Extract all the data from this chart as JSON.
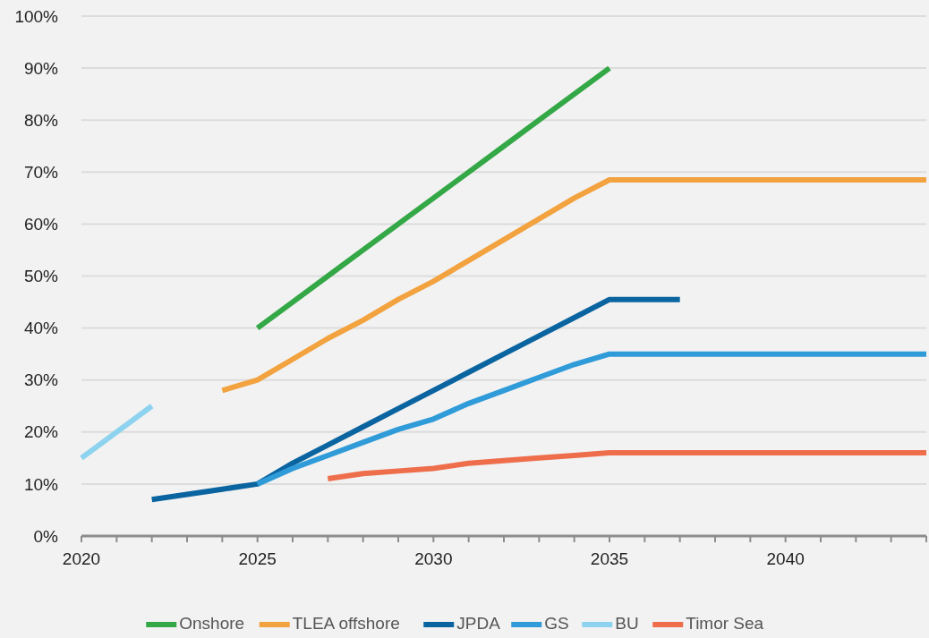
{
  "chart_data": {
    "type": "line",
    "xlim": [
      2020,
      2044
    ],
    "xticks": [
      2020,
      {
        "value": 2021,
        "label": null
      },
      {
        "value": 2022,
        "label": null
      },
      {
        "value": 2023,
        "label": null
      },
      {
        "value": 2024,
        "label": null
      },
      2025,
      {
        "value": 2026,
        "label": null
      },
      {
        "value": 2027,
        "label": null
      },
      {
        "value": 2028,
        "label": null
      },
      {
        "value": 2029,
        "label": null
      },
      2030,
      {
        "value": 2031,
        "label": null
      },
      {
        "value": 2032,
        "label": null
      },
      {
        "value": 2033,
        "label": null
      },
      {
        "value": 2034,
        "label": null
      },
      2035,
      {
        "value": 2036,
        "label": null
      },
      {
        "value": 2037,
        "label": null
      },
      {
        "value": 2038,
        "label": null
      },
      {
        "value": 2039,
        "label": null
      },
      2040,
      {
        "value": 2041,
        "label": null
      },
      {
        "value": 2042,
        "label": null
      },
      {
        "value": 2043,
        "label": null
      },
      {
        "value": 2044,
        "label": null
      }
    ],
    "ylim": [
      0,
      100
    ],
    "yticks": [
      {
        "value": 0,
        "label": "0%"
      },
      {
        "value": 10,
        "label": "10%"
      },
      {
        "value": 20,
        "label": "20%"
      },
      {
        "value": 30,
        "label": "30%"
      },
      {
        "value": 40,
        "label": "40%"
      },
      {
        "value": 50,
        "label": "50%"
      },
      {
        "value": 60,
        "label": "60%"
      },
      {
        "value": 70,
        "label": "70%"
      },
      {
        "value": 80,
        "label": "80%"
      },
      {
        "value": 90,
        "label": "90%"
      },
      {
        "value": 100,
        "label": "100%"
      }
    ],
    "grid": "y",
    "legend": "bottom",
    "marker": "none",
    "line_style": "solid",
    "series": [
      {
        "name": "Onshore",
        "color": "#34a846",
        "x": [
          2025,
          2026,
          2027,
          2028,
          2029,
          2030,
          2031,
          2032,
          2033,
          2034,
          2035
        ],
        "values": [
          40,
          45,
          50,
          55,
          60,
          65,
          70,
          75,
          80,
          85,
          90
        ]
      },
      {
        "name": "TLEA offshore",
        "color": "#f2a23e",
        "x": [
          2024,
          2025,
          2026,
          2027,
          2028,
          2029,
          2030,
          2031,
          2032,
          2033,
          2034,
          2035,
          2044
        ],
        "values": [
          28,
          30,
          34,
          38,
          41.5,
          45.5,
          49,
          53,
          57,
          61,
          65,
          68.5,
          68.5
        ]
      },
      {
        "name": "JPDA",
        "color": "#0a64a0",
        "x": [
          2022,
          2023,
          2024,
          2025,
          2026,
          2027,
          2028,
          2029,
          2030,
          2031,
          2032,
          2033,
          2034,
          2035,
          2036,
          2037
        ],
        "values": [
          7,
          8,
          9,
          10,
          14,
          17.5,
          21,
          24.5,
          28,
          31.5,
          35,
          38.5,
          42,
          45.5,
          45.5,
          45.5
        ]
      },
      {
        "name": "GS",
        "color": "#2f9bd8",
        "x": [
          2025,
          2026,
          2027,
          2028,
          2029,
          2030,
          2031,
          2032,
          2033,
          2034,
          2035,
          2044
        ],
        "values": [
          10,
          13,
          15.5,
          18,
          20.5,
          22.5,
          25.5,
          28,
          30.5,
          33,
          35,
          35
        ]
      },
      {
        "name": "BU",
        "color": "#8dd3ef",
        "x": [
          2020,
          2021,
          2022
        ],
        "values": [
          15,
          20,
          25
        ]
      },
      {
        "name": "Timor Sea",
        "color": "#ee6e4c",
        "x": [
          2027,
          2028,
          2029,
          2030,
          2031,
          2032,
          2033,
          2034,
          2035,
          2044
        ],
        "values": [
          11,
          12,
          12.5,
          13,
          14,
          14.5,
          15,
          15.5,
          16,
          16
        ]
      }
    ]
  }
}
